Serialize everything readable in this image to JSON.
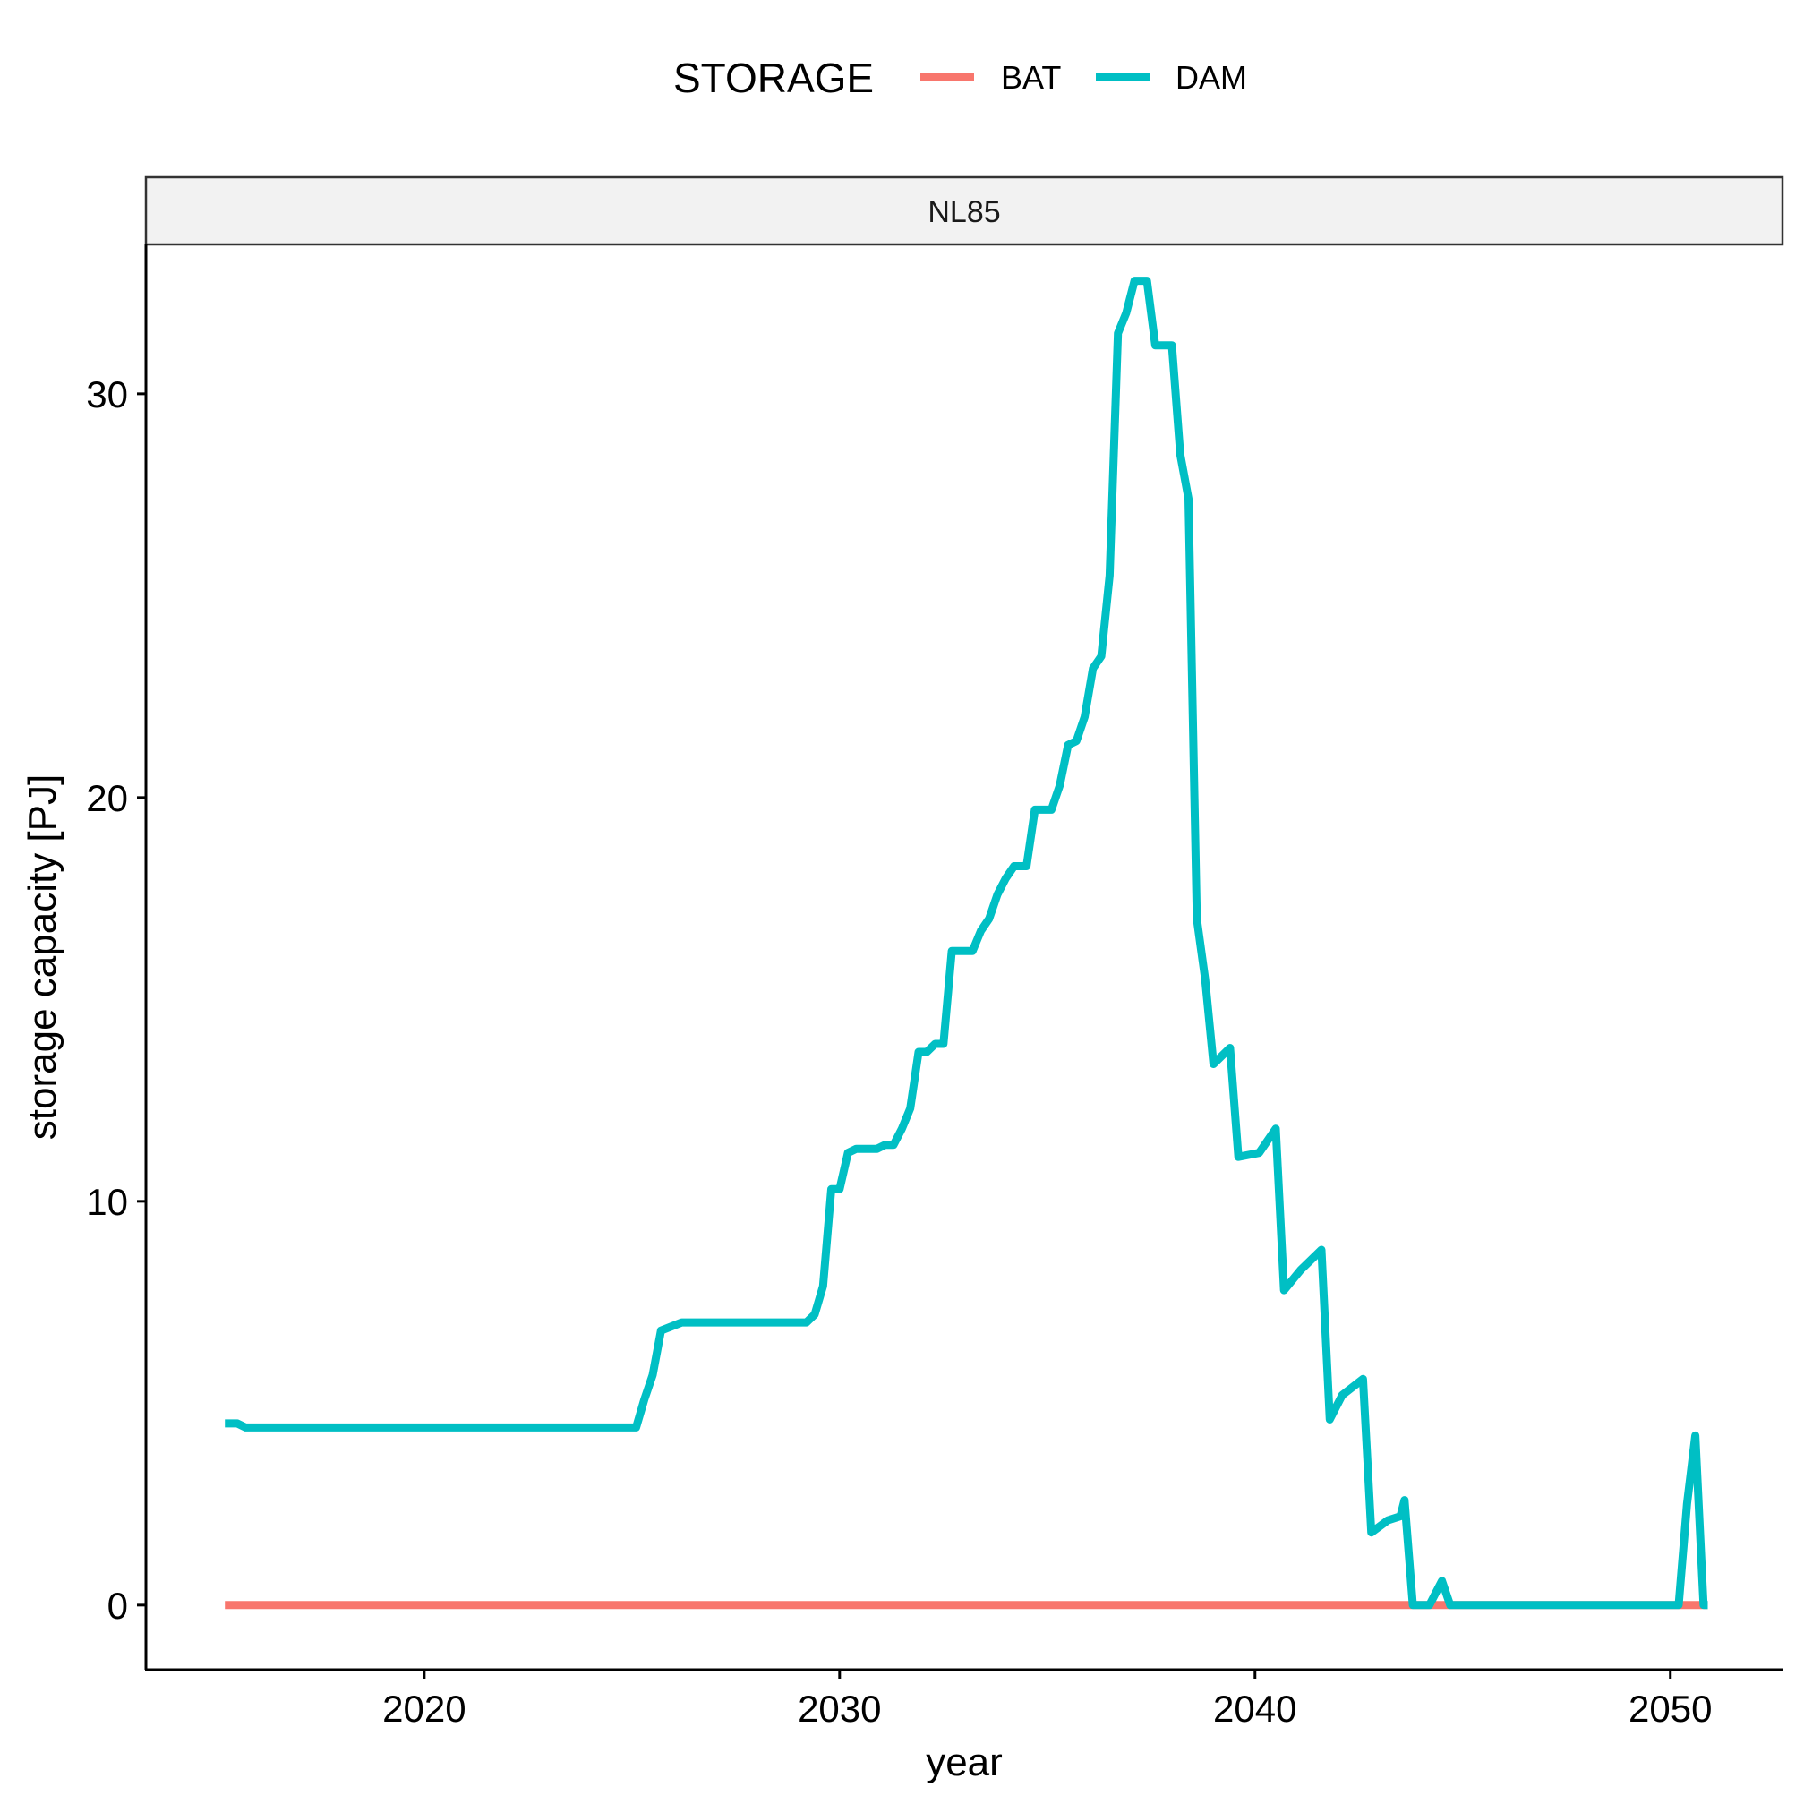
{
  "chart_data": {
    "type": "line",
    "facet": "NL85",
    "xlabel": "year",
    "ylabel": "storage capacity [PJ]",
    "xlim": [
      2013.3,
      2052.7
    ],
    "ylim": [
      -1.6,
      33.7
    ],
    "x_ticks": [
      2020,
      2030,
      2040,
      2050
    ],
    "y_ticks": [
      0,
      10,
      20,
      30
    ],
    "legend": {
      "title": "STORAGE",
      "position": "top",
      "entries": [
        "BAT",
        "DAM"
      ]
    },
    "grid": false,
    "series": [
      {
        "name": "BAT",
        "color": "#F8766D",
        "points": [
          [
            2015.2,
            0
          ],
          [
            2050.9,
            0
          ]
        ]
      },
      {
        "name": "DAM",
        "color": "#00BFC4",
        "points": [
          [
            2015.2,
            4.5
          ],
          [
            2015.5,
            4.5
          ],
          [
            2015.7,
            4.4
          ],
          [
            2025.1,
            4.4
          ],
          [
            2025.3,
            5.1
          ],
          [
            2025.5,
            5.7
          ],
          [
            2025.7,
            6.8
          ],
          [
            2026.2,
            7.0
          ],
          [
            2029.2,
            7.0
          ],
          [
            2029.4,
            7.2
          ],
          [
            2029.6,
            7.9
          ],
          [
            2029.8,
            10.3
          ],
          [
            2030.0,
            10.3
          ],
          [
            2030.2,
            11.2
          ],
          [
            2030.4,
            11.3
          ],
          [
            2030.9,
            11.3
          ],
          [
            2031.1,
            11.4
          ],
          [
            2031.3,
            11.4
          ],
          [
            2031.5,
            11.8
          ],
          [
            2031.7,
            12.3
          ],
          [
            2031.9,
            13.7
          ],
          [
            2032.1,
            13.7
          ],
          [
            2032.3,
            13.9
          ],
          [
            2032.5,
            13.9
          ],
          [
            2032.7,
            16.2
          ],
          [
            2033.2,
            16.2
          ],
          [
            2033.4,
            16.7
          ],
          [
            2033.6,
            17.0
          ],
          [
            2033.8,
            17.6
          ],
          [
            2034.0,
            18.0
          ],
          [
            2034.2,
            18.3
          ],
          [
            2034.5,
            18.3
          ],
          [
            2034.7,
            19.7
          ],
          [
            2035.1,
            19.7
          ],
          [
            2035.3,
            20.3
          ],
          [
            2035.5,
            21.3
          ],
          [
            2035.7,
            21.4
          ],
          [
            2035.9,
            22.0
          ],
          [
            2036.1,
            23.2
          ],
          [
            2036.3,
            23.5
          ],
          [
            2036.5,
            25.5
          ],
          [
            2036.7,
            31.5
          ],
          [
            2036.9,
            32.0
          ],
          [
            2037.1,
            32.8
          ],
          [
            2037.4,
            32.8
          ],
          [
            2037.6,
            31.2
          ],
          [
            2038.0,
            31.2
          ],
          [
            2038.2,
            28.5
          ],
          [
            2038.4,
            27.4
          ],
          [
            2038.6,
            17.0
          ],
          [
            2038.8,
            15.5
          ],
          [
            2039.0,
            13.4
          ],
          [
            2039.4,
            13.8
          ],
          [
            2039.6,
            11.1
          ],
          [
            2040.1,
            11.2
          ],
          [
            2040.5,
            11.8
          ],
          [
            2040.7,
            7.8
          ],
          [
            2041.1,
            8.3
          ],
          [
            2041.6,
            8.8
          ],
          [
            2041.8,
            4.6
          ],
          [
            2042.1,
            5.2
          ],
          [
            2042.6,
            5.6
          ],
          [
            2042.8,
            1.8
          ],
          [
            2043.2,
            2.1
          ],
          [
            2043.5,
            2.2
          ],
          [
            2043.6,
            2.6
          ],
          [
            2043.8,
            0
          ],
          [
            2044.2,
            0
          ],
          [
            2044.5,
            0.6
          ],
          [
            2044.7,
            0
          ],
          [
            2050.2,
            0
          ],
          [
            2050.4,
            2.5
          ],
          [
            2050.6,
            4.2
          ],
          [
            2050.8,
            0
          ],
          [
            2050.9,
            0
          ]
        ]
      }
    ]
  }
}
